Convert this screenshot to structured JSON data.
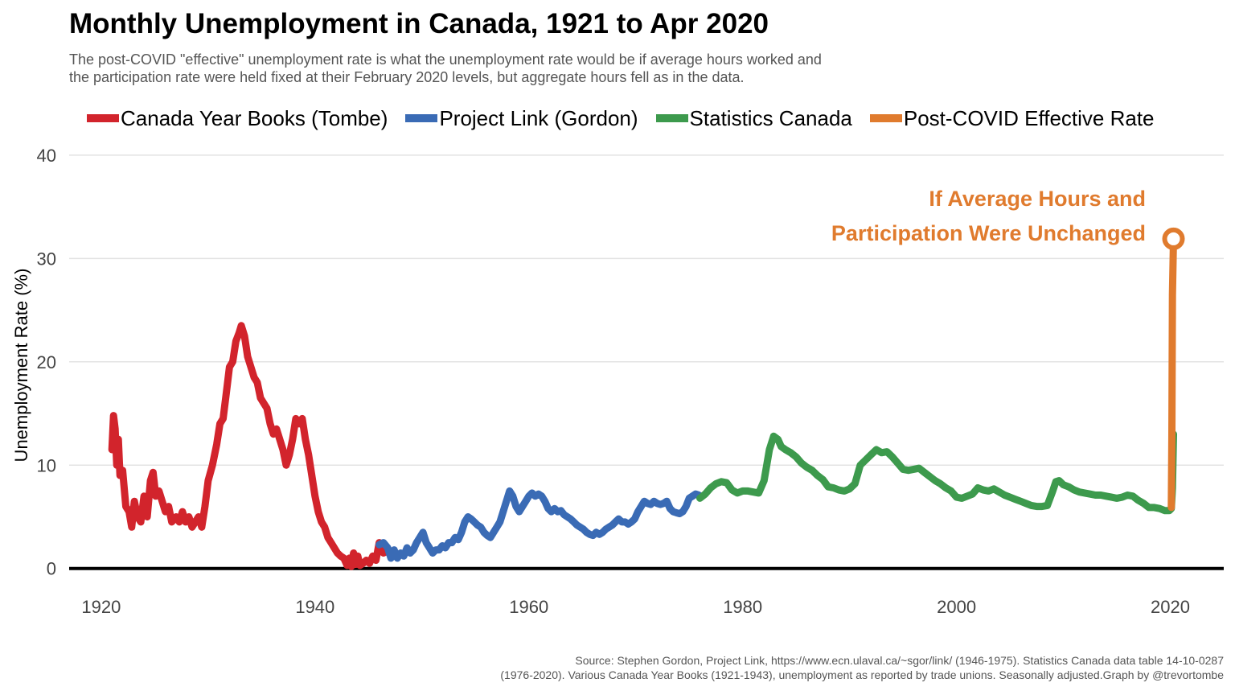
{
  "chart_data": {
    "type": "line",
    "title": "Monthly Unemployment in Canada, 1921 to Apr 2020",
    "subtitle": [
      "The post-COVID \"effective\" unemployment rate is what the unemployment rate would be if average hours worked and",
      "the participation rate were held fixed at their February 2020 levels, but aggregate hours fell as in the data."
    ],
    "xlabel": "",
    "ylabel": "Unemployment Rate (%)",
    "xlim": [
      1917,
      2025
    ],
    "ylim": [
      -1.5,
      41
    ],
    "x_ticks": [
      1920,
      1940,
      1960,
      1980,
      2000,
      2020
    ],
    "x_tick_labels": [
      "1920",
      "1940",
      "1960",
      "1980",
      "2000",
      "2020"
    ],
    "y_ticks": [
      0,
      10,
      20,
      30,
      40
    ],
    "y_tick_labels": [
      "0",
      "10",
      "20",
      "30",
      "40"
    ],
    "grid": true,
    "legend_position": "top",
    "series": [
      {
        "name": "Canada Year Books (Tombe)",
        "color": "#d2242c",
        "points": [
          [
            1921.0,
            11.5
          ],
          [
            1921.15,
            14.8
          ],
          [
            1921.3,
            13.5
          ],
          [
            1921.45,
            10.0
          ],
          [
            1921.6,
            12.5
          ],
          [
            1921.75,
            9.0
          ],
          [
            1922.0,
            9.5
          ],
          [
            1922.3,
            6.0
          ],
          [
            1922.6,
            5.5
          ],
          [
            1922.85,
            4.0
          ],
          [
            1923.1,
            6.5
          ],
          [
            1923.4,
            5.0
          ],
          [
            1923.7,
            4.5
          ],
          [
            1924.0,
            7.0
          ],
          [
            1924.3,
            5.0
          ],
          [
            1924.6,
            8.5
          ],
          [
            1924.85,
            9.3
          ],
          [
            1925.1,
            7.0
          ],
          [
            1925.4,
            7.5
          ],
          [
            1925.7,
            6.5
          ],
          [
            1926.0,
            5.5
          ],
          [
            1926.3,
            6.0
          ],
          [
            1926.6,
            4.5
          ],
          [
            1927.0,
            5.0
          ],
          [
            1927.3,
            4.5
          ],
          [
            1927.6,
            5.5
          ],
          [
            1927.9,
            4.5
          ],
          [
            1928.2,
            5.0
          ],
          [
            1928.5,
            4.0
          ],
          [
            1928.8,
            4.5
          ],
          [
            1929.1,
            5.0
          ],
          [
            1929.4,
            4.0
          ],
          [
            1929.7,
            6.0
          ],
          [
            1930.0,
            8.5
          ],
          [
            1930.4,
            10.0
          ],
          [
            1930.8,
            12.0
          ],
          [
            1931.1,
            14.0
          ],
          [
            1931.4,
            14.5
          ],
          [
            1931.7,
            17.0
          ],
          [
            1932.0,
            19.5
          ],
          [
            1932.3,
            20.0
          ],
          [
            1932.6,
            22.0
          ],
          [
            1932.9,
            22.8
          ],
          [
            1933.1,
            23.5
          ],
          [
            1933.4,
            22.5
          ],
          [
            1933.7,
            20.5
          ],
          [
            1934.0,
            19.5
          ],
          [
            1934.3,
            18.5
          ],
          [
            1934.6,
            18.0
          ],
          [
            1934.9,
            16.5
          ],
          [
            1935.2,
            16.0
          ],
          [
            1935.5,
            15.5
          ],
          [
            1935.8,
            14.0
          ],
          [
            1936.1,
            13.0
          ],
          [
            1936.4,
            13.5
          ],
          [
            1936.7,
            12.5
          ],
          [
            1937.0,
            11.5
          ],
          [
            1937.3,
            10.0
          ],
          [
            1937.6,
            11.0
          ],
          [
            1937.9,
            12.5
          ],
          [
            1938.2,
            14.5
          ],
          [
            1938.5,
            14.0
          ],
          [
            1938.8,
            14.5
          ],
          [
            1939.1,
            12.5
          ],
          [
            1939.4,
            11.0
          ],
          [
            1939.7,
            9.0
          ],
          [
            1940.0,
            7.0
          ],
          [
            1940.3,
            5.5
          ],
          [
            1940.6,
            4.5
          ],
          [
            1940.9,
            4.0
          ],
          [
            1941.2,
            3.0
          ],
          [
            1941.5,
            2.5
          ],
          [
            1941.8,
            2.0
          ],
          [
            1942.1,
            1.5
          ],
          [
            1942.4,
            1.2
          ],
          [
            1942.7,
            1.0
          ],
          [
            1943.0,
            0.3
          ],
          [
            1943.2,
            1.0
          ],
          [
            1943.4,
            0.2
          ],
          [
            1943.6,
            1.5
          ],
          [
            1943.8,
            0.4
          ],
          [
            1944.0,
            1.2
          ],
          [
            1944.2,
            0.3
          ],
          [
            1944.5,
            0.5
          ],
          [
            1944.8,
            0.8
          ],
          [
            1945.1,
            0.5
          ],
          [
            1945.4,
            1.2
          ],
          [
            1945.7,
            0.8
          ],
          [
            1946.0,
            2.5
          ],
          [
            1946.2,
            2.0
          ],
          [
            1946.4,
            1.5
          ],
          [
            1946.6,
            1.6
          ]
        ]
      },
      {
        "name": "Project Link (Gordon)",
        "color": "#3a6bb5",
        "points": [
          [
            1946.0,
            2.3
          ],
          [
            1946.4,
            2.5
          ],
          [
            1946.8,
            2.0
          ],
          [
            1947.1,
            1.0
          ],
          [
            1947.4,
            1.8
          ],
          [
            1947.7,
            1.0
          ],
          [
            1948.0,
            1.5
          ],
          [
            1948.3,
            1.2
          ],
          [
            1948.6,
            2.0
          ],
          [
            1948.9,
            1.5
          ],
          [
            1949.2,
            1.8
          ],
          [
            1949.5,
            2.5
          ],
          [
            1949.8,
            3.0
          ],
          [
            1950.1,
            3.5
          ],
          [
            1950.4,
            2.5
          ],
          [
            1950.7,
            2.0
          ],
          [
            1951.0,
            1.5
          ],
          [
            1951.3,
            1.8
          ],
          [
            1951.6,
            1.8
          ],
          [
            1951.9,
            2.2
          ],
          [
            1952.2,
            2.0
          ],
          [
            1952.5,
            2.5
          ],
          [
            1952.8,
            2.5
          ],
          [
            1953.1,
            3.0
          ],
          [
            1953.4,
            2.8
          ],
          [
            1953.7,
            3.5
          ],
          [
            1954.0,
            4.5
          ],
          [
            1954.3,
            5.0
          ],
          [
            1954.6,
            4.8
          ],
          [
            1954.9,
            4.5
          ],
          [
            1955.2,
            4.2
          ],
          [
            1955.5,
            4.0
          ],
          [
            1955.8,
            3.5
          ],
          [
            1956.1,
            3.2
          ],
          [
            1956.4,
            3.0
          ],
          [
            1956.7,
            3.5
          ],
          [
            1957.0,
            4.0
          ],
          [
            1957.3,
            4.5
          ],
          [
            1957.6,
            5.5
          ],
          [
            1957.9,
            6.5
          ],
          [
            1958.2,
            7.5
          ],
          [
            1958.5,
            7.0
          ],
          [
            1958.8,
            6.0
          ],
          [
            1959.1,
            5.5
          ],
          [
            1959.4,
            6.0
          ],
          [
            1959.7,
            6.5
          ],
          [
            1960.0,
            7.0
          ],
          [
            1960.3,
            7.3
          ],
          [
            1960.6,
            7.0
          ],
          [
            1960.9,
            7.2
          ],
          [
            1961.2,
            7.0
          ],
          [
            1961.5,
            6.5
          ],
          [
            1961.8,
            5.8
          ],
          [
            1962.1,
            5.5
          ],
          [
            1962.4,
            5.8
          ],
          [
            1962.7,
            5.5
          ],
          [
            1963.0,
            5.6
          ],
          [
            1963.3,
            5.2
          ],
          [
            1963.6,
            5.0
          ],
          [
            1963.9,
            4.8
          ],
          [
            1964.2,
            4.5
          ],
          [
            1964.5,
            4.2
          ],
          [
            1964.8,
            4.0
          ],
          [
            1965.1,
            3.8
          ],
          [
            1965.4,
            3.5
          ],
          [
            1965.7,
            3.3
          ],
          [
            1966.0,
            3.2
          ],
          [
            1966.3,
            3.5
          ],
          [
            1966.6,
            3.3
          ],
          [
            1966.9,
            3.5
          ],
          [
            1967.2,
            3.8
          ],
          [
            1967.5,
            4.0
          ],
          [
            1967.8,
            4.2
          ],
          [
            1968.1,
            4.5
          ],
          [
            1968.4,
            4.8
          ],
          [
            1968.7,
            4.5
          ],
          [
            1969.0,
            4.5
          ],
          [
            1969.3,
            4.3
          ],
          [
            1969.6,
            4.5
          ],
          [
            1969.9,
            4.8
          ],
          [
            1970.2,
            5.5
          ],
          [
            1970.5,
            6.0
          ],
          [
            1970.8,
            6.5
          ],
          [
            1971.1,
            6.3
          ],
          [
            1971.4,
            6.2
          ],
          [
            1971.7,
            6.5
          ],
          [
            1972.0,
            6.3
          ],
          [
            1972.3,
            6.2
          ],
          [
            1972.6,
            6.3
          ],
          [
            1972.9,
            6.5
          ],
          [
            1973.2,
            5.8
          ],
          [
            1973.5,
            5.5
          ],
          [
            1973.8,
            5.4
          ],
          [
            1974.1,
            5.3
          ],
          [
            1974.4,
            5.5
          ],
          [
            1974.7,
            6.0
          ],
          [
            1975.0,
            6.8
          ],
          [
            1975.3,
            7.0
          ],
          [
            1975.6,
            7.2
          ],
          [
            1975.9,
            7.1
          ]
        ]
      },
      {
        "name": "Statistics Canada",
        "color": "#3d9a4d",
        "points": [
          [
            1976.0,
            6.8
          ],
          [
            1976.5,
            7.2
          ],
          [
            1977.0,
            7.8
          ],
          [
            1977.5,
            8.2
          ],
          [
            1978.0,
            8.4
          ],
          [
            1978.5,
            8.3
          ],
          [
            1979.0,
            7.6
          ],
          [
            1979.5,
            7.3
          ],
          [
            1980.0,
            7.5
          ],
          [
            1980.5,
            7.5
          ],
          [
            1981.0,
            7.4
          ],
          [
            1981.5,
            7.3
          ],
          [
            1982.0,
            8.5
          ],
          [
            1982.5,
            11.5
          ],
          [
            1982.9,
            12.8
          ],
          [
            1983.3,
            12.5
          ],
          [
            1983.6,
            11.8
          ],
          [
            1984.0,
            11.5
          ],
          [
            1984.5,
            11.2
          ],
          [
            1985.0,
            10.8
          ],
          [
            1985.5,
            10.2
          ],
          [
            1986.0,
            9.8
          ],
          [
            1986.5,
            9.5
          ],
          [
            1987.0,
            9.0
          ],
          [
            1987.5,
            8.6
          ],
          [
            1988.0,
            7.9
          ],
          [
            1988.5,
            7.8
          ],
          [
            1989.0,
            7.6
          ],
          [
            1989.5,
            7.5
          ],
          [
            1990.0,
            7.7
          ],
          [
            1990.5,
            8.2
          ],
          [
            1991.0,
            10.0
          ],
          [
            1991.5,
            10.5
          ],
          [
            1992.0,
            11.0
          ],
          [
            1992.5,
            11.5
          ],
          [
            1993.0,
            11.2
          ],
          [
            1993.5,
            11.3
          ],
          [
            1994.0,
            10.8
          ],
          [
            1994.5,
            10.2
          ],
          [
            1995.0,
            9.6
          ],
          [
            1995.5,
            9.5
          ],
          [
            1996.0,
            9.6
          ],
          [
            1996.5,
            9.7
          ],
          [
            1997.0,
            9.3
          ],
          [
            1997.5,
            8.9
          ],
          [
            1998.0,
            8.5
          ],
          [
            1998.5,
            8.2
          ],
          [
            1999.0,
            7.8
          ],
          [
            1999.5,
            7.5
          ],
          [
            2000.0,
            6.9
          ],
          [
            2000.5,
            6.8
          ],
          [
            2001.0,
            7.0
          ],
          [
            2001.5,
            7.2
          ],
          [
            2002.0,
            7.8
          ],
          [
            2002.5,
            7.6
          ],
          [
            2003.0,
            7.5
          ],
          [
            2003.5,
            7.7
          ],
          [
            2004.0,
            7.4
          ],
          [
            2004.5,
            7.1
          ],
          [
            2005.0,
            6.9
          ],
          [
            2005.5,
            6.7
          ],
          [
            2006.0,
            6.5
          ],
          [
            2006.5,
            6.3
          ],
          [
            2007.0,
            6.1
          ],
          [
            2007.5,
            6.0
          ],
          [
            2008.0,
            6.0
          ],
          [
            2008.5,
            6.1
          ],
          [
            2009.0,
            7.5
          ],
          [
            2009.3,
            8.4
          ],
          [
            2009.6,
            8.5
          ],
          [
            2010.0,
            8.1
          ],
          [
            2010.5,
            7.9
          ],
          [
            2011.0,
            7.6
          ],
          [
            2011.5,
            7.4
          ],
          [
            2012.0,
            7.3
          ],
          [
            2012.5,
            7.2
          ],
          [
            2013.0,
            7.1
          ],
          [
            2013.5,
            7.1
          ],
          [
            2014.0,
            7.0
          ],
          [
            2014.5,
            6.9
          ],
          [
            2015.0,
            6.8
          ],
          [
            2015.5,
            6.9
          ],
          [
            2016.0,
            7.1
          ],
          [
            2016.5,
            7.0
          ],
          [
            2017.0,
            6.6
          ],
          [
            2017.5,
            6.3
          ],
          [
            2018.0,
            5.9
          ],
          [
            2018.5,
            5.9
          ],
          [
            2019.0,
            5.8
          ],
          [
            2019.5,
            5.6
          ],
          [
            2019.9,
            5.6
          ],
          [
            2020.1,
            5.8
          ],
          [
            2020.2,
            7.8
          ],
          [
            2020.3,
            13.0
          ]
        ]
      },
      {
        "name": "Post-COVID Effective Rate",
        "color": "#e07b2e",
        "points": [
          [
            2020.1,
            5.9
          ],
          [
            2020.15,
            13.0
          ],
          [
            2020.2,
            26.5
          ],
          [
            2020.3,
            31.9
          ]
        ]
      }
    ],
    "annotations": [
      {
        "text": "If Average Hours and",
        "color": "#e07b2e"
      },
      {
        "text": "Participation Were Unchanged",
        "color": "#e07b2e"
      }
    ],
    "end_marker": {
      "x": 2020.3,
      "y": 31.9,
      "shape": "open-circle",
      "color": "#e07b2e"
    },
    "baseline": {
      "y": 0,
      "color": "#000000"
    },
    "caption": [
      "Source: Stephen Gordon, Project Link, https://www.ecn.ulaval.ca/~sgor/link/ (1946-1975). Statistics Canada data table 14-10-0287",
      "(1976-2020). Various Canada Year Books (1921-1943), unemployment as reported by trade unions. Seasonally adjusted.Graph by @trevortombe"
    ]
  }
}
